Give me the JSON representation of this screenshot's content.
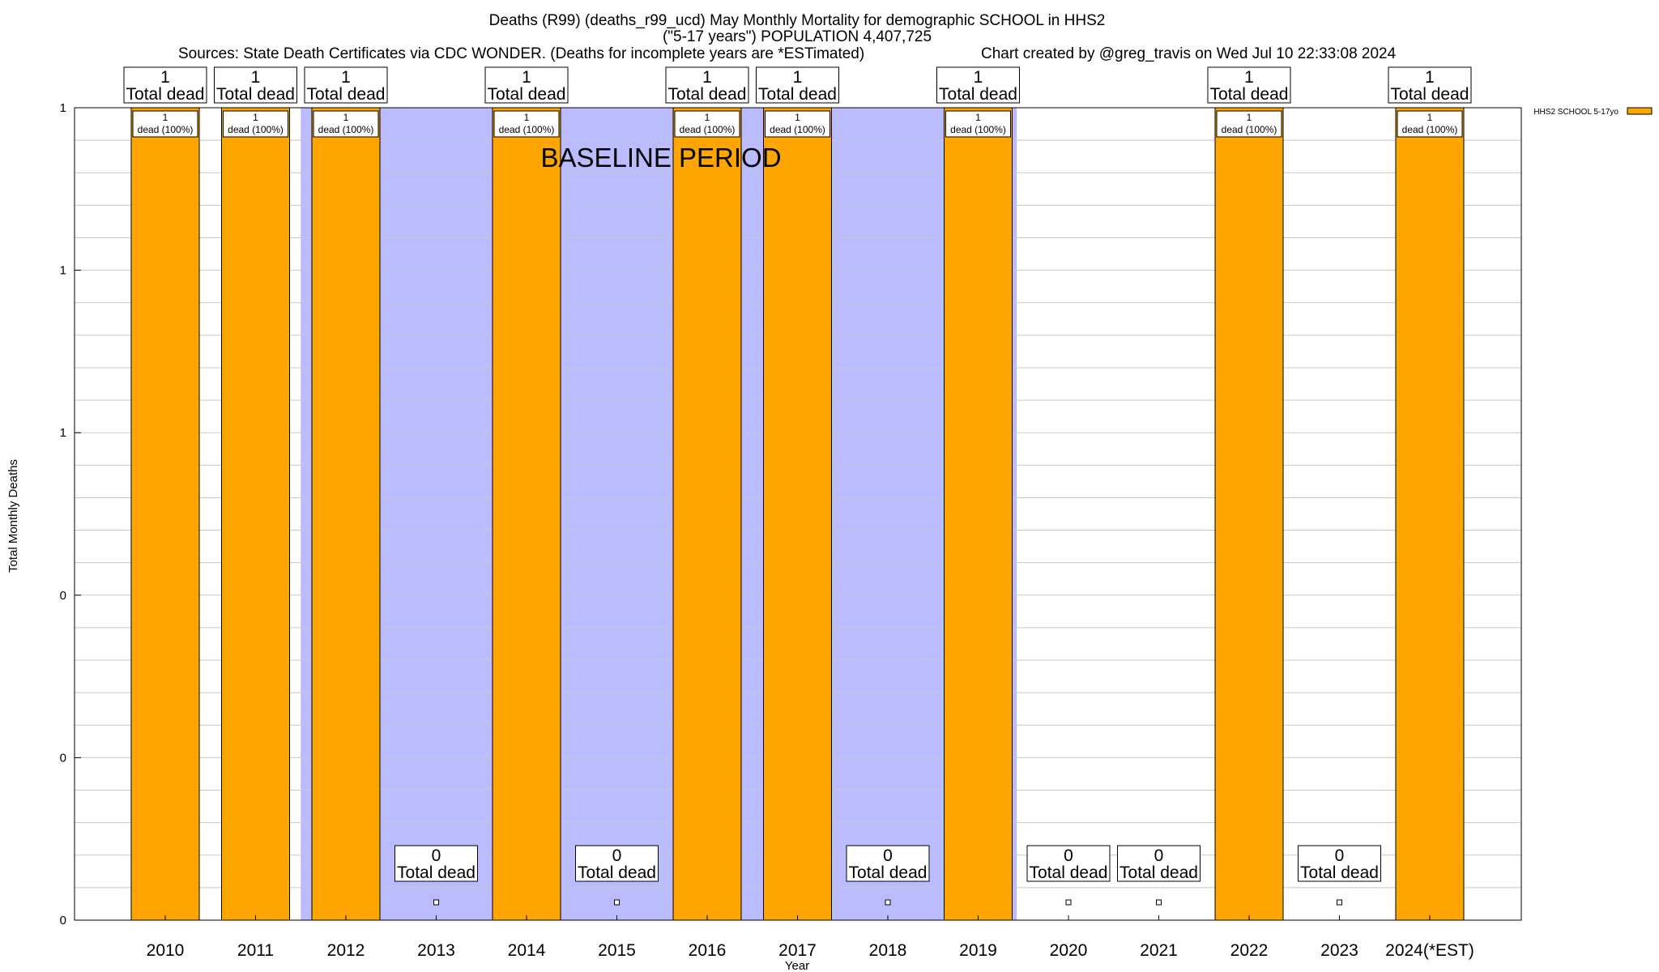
{
  "chart_data": {
    "type": "bar",
    "title_lines": [
      "Deaths (R99) (deaths_r99_ucd) May Monthly Mortality for demographic SCHOOL in HHS2",
      "(\"5-17 years\") POPULATION 4,407,725",
      "Sources: State Death Certificates via CDC WONDER. (Deaths for incomplete years are *ESTimated)",
      "Chart created by @greg_travis on Wed Jul 10 22:33:08 2024"
    ],
    "xlabel": "Year",
    "ylabel": "Total Monthly Deaths",
    "categories": [
      "2010",
      "2011",
      "2012",
      "2013",
      "2014",
      "2015",
      "2016",
      "2017",
      "2018",
      "2019",
      "2020",
      "2021",
      "2022",
      "2023",
      "2024(*EST)"
    ],
    "series": [
      {
        "name": "HHS2 SCHOOL 5-17yo",
        "color": "#ffa500",
        "values": [
          1,
          1,
          1,
          0,
          1,
          0,
          1,
          1,
          0,
          1,
          0,
          0,
          1,
          0,
          1
        ]
      }
    ],
    "total_labels": [
      "1",
      "1",
      "1",
      "0",
      "1",
      "0",
      "1",
      "1",
      "0",
      "1",
      "0",
      "0",
      "1",
      "0",
      "1"
    ],
    "total_caption": "Total dead",
    "segment_number_labels": [
      "1",
      "1",
      "1",
      "",
      "1",
      "",
      "1",
      "1",
      "",
      "1",
      "",
      "",
      "1",
      "",
      "1"
    ],
    "segment_labels": [
      "dead (100%)",
      "dead (100%)",
      "dead (100%)",
      "",
      "dead (100%)",
      "",
      "dead (100%)",
      "dead (100%)",
      "",
      "dead (100%)",
      "",
      "",
      "dead (100%)",
      "",
      "dead (100%)"
    ],
    "ylim": [
      0,
      1
    ],
    "yticks": [
      0,
      0.2,
      0.4,
      0.6,
      0.8,
      1
    ],
    "ytick_labels": [
      "0",
      "0",
      "0",
      "1",
      "1",
      "1"
    ],
    "baseline_period": {
      "label": "BASELINE PERIOD",
      "start_year": "2012",
      "end_year": "2019",
      "color": "#bbbbff"
    },
    "grid": "horizontal",
    "legend": "top-right",
    "bar_color": "#ffa500",
    "empty_marker": "small square"
  }
}
